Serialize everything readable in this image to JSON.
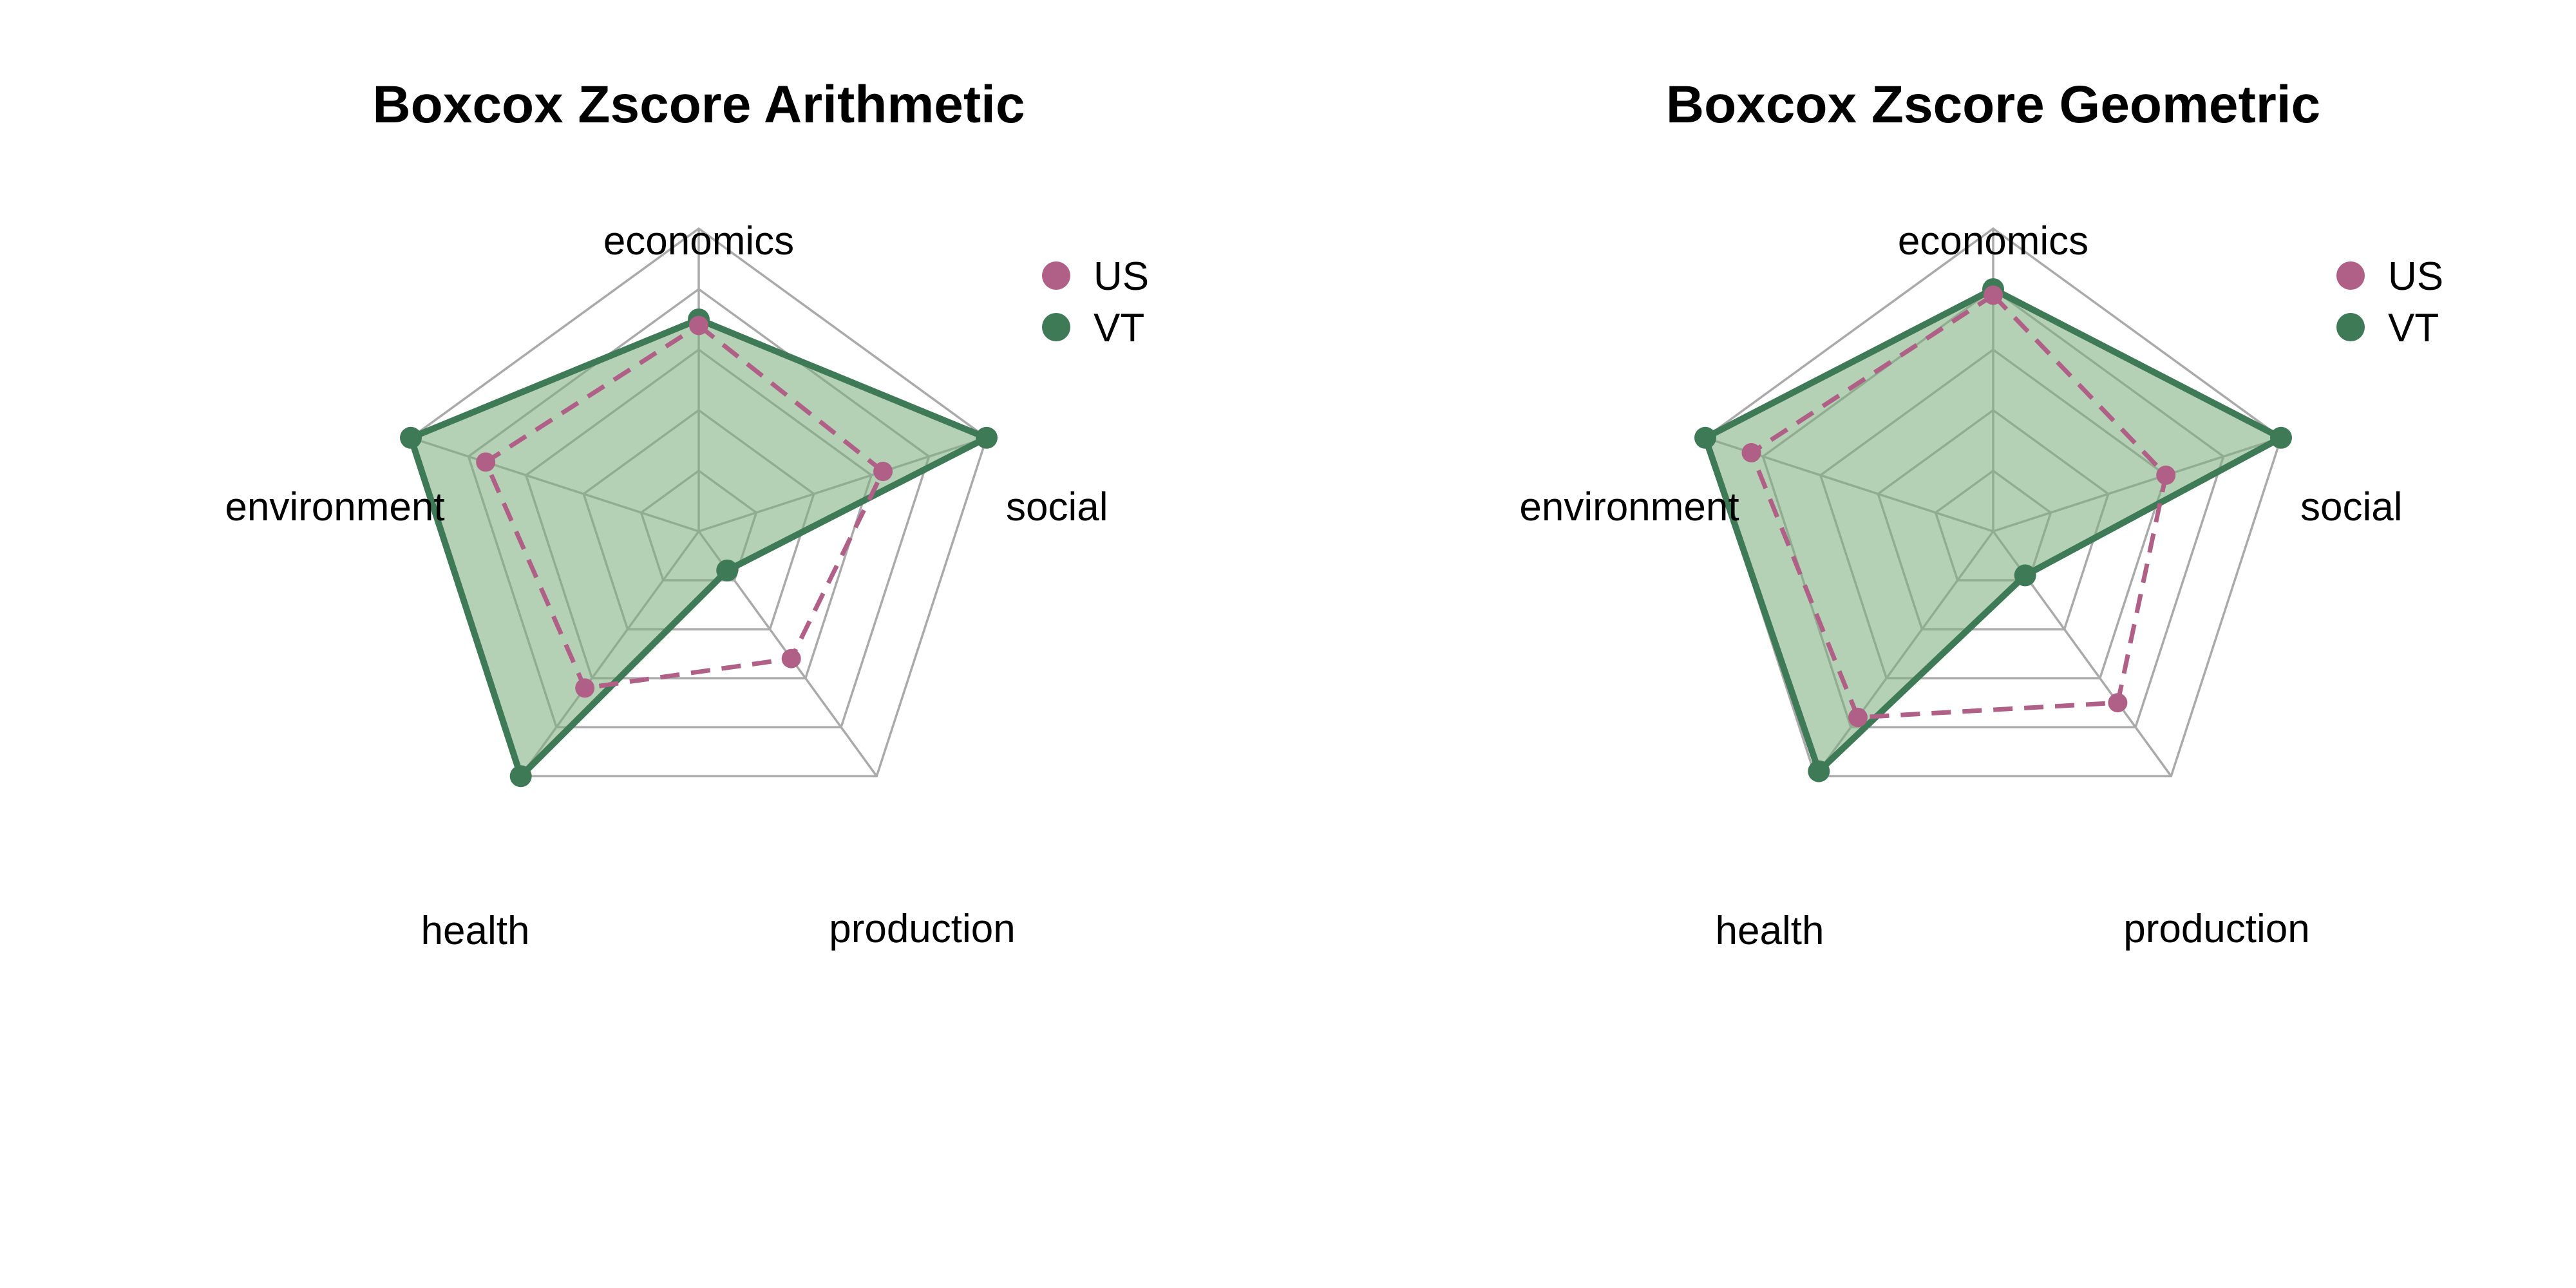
{
  "colors": {
    "background": "#ffffff",
    "grid": "#aaaaaa",
    "us_line": "#b05f86",
    "vt_line": "#3f7a57",
    "vt_fill": "#7fb07f",
    "vt_fill_opacity": 0.58
  },
  "chart_data": [
    {
      "type": "radar",
      "title": "Boxcox Zscore Arithmetic",
      "axes": [
        "economics",
        "social",
        "production",
        "health",
        "environment"
      ],
      "range": [
        0,
        5
      ],
      "grid_levels": 5,
      "legend": {
        "placement": "top-right",
        "entries": [
          "US",
          "VT"
        ]
      },
      "series": [
        {
          "name": "US",
          "style": "dashed",
          "values": [
            3.4,
            3.2,
            2.6,
            3.2,
            3.7
          ]
        },
        {
          "name": "VT",
          "style": "solid-filled",
          "values": [
            3.5,
            5.0,
            0.8,
            5.0,
            5.0
          ]
        }
      ]
    },
    {
      "type": "radar",
      "title": "Boxcox Zscore Geometric",
      "axes": [
        "economics",
        "social",
        "production",
        "health",
        "environment"
      ],
      "range": [
        0,
        5
      ],
      "grid_levels": 5,
      "legend": {
        "placement": "top-right",
        "entries": [
          "US",
          "VT"
        ]
      },
      "series": [
        {
          "name": "US",
          "style": "dashed",
          "values": [
            3.9,
            3.0,
            3.5,
            3.8,
            4.2
          ]
        },
        {
          "name": "VT",
          "style": "solid-filled",
          "values": [
            4.0,
            5.0,
            0.9,
            4.9,
            5.0
          ]
        }
      ]
    }
  ]
}
